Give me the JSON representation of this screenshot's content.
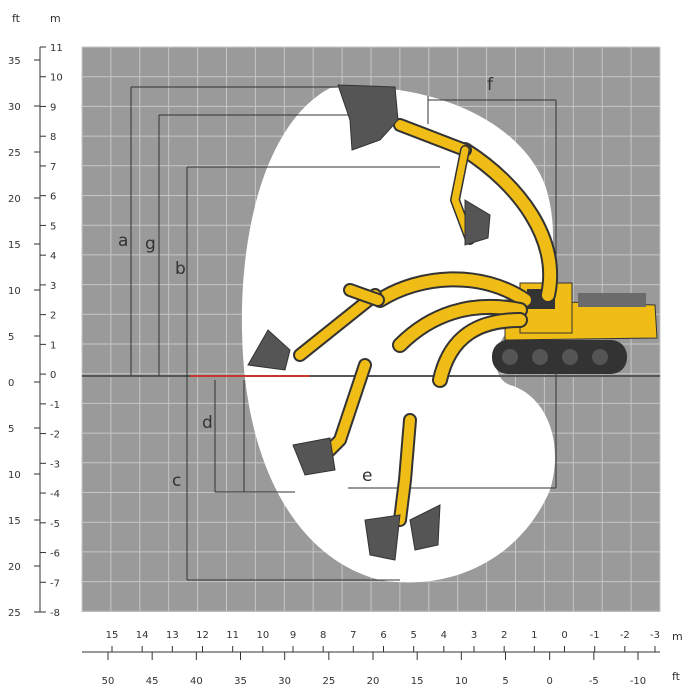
{
  "units": {
    "left_outer": "ft",
    "left_inner": "m",
    "bottom_right": "m",
    "bottom_right_lower": "ft"
  },
  "axis_left_m": [
    "11",
    "10",
    "9",
    "8",
    "7",
    "6",
    "5",
    "4",
    "3",
    "2",
    "1",
    "0",
    "-1",
    "-2",
    "-3",
    "-4",
    "-5",
    "-6",
    "-7",
    "-8"
  ],
  "axis_left_ft": [
    "35",
    "30",
    "25",
    "20",
    "15",
    "10",
    "5",
    "0",
    "5",
    "10",
    "15",
    "20",
    "25"
  ],
  "axis_bottom_m": [
    "15",
    "14",
    "13",
    "12",
    "11",
    "10",
    "9",
    "8",
    "7",
    "6",
    "5",
    "4",
    "3",
    "2",
    "1",
    "0",
    "-1",
    "-2",
    "-3"
  ],
  "axis_bottom_ft": [
    "50",
    "45",
    "40",
    "35",
    "30",
    "25",
    "20",
    "15",
    "10",
    "5",
    "0",
    "-5",
    "-10"
  ],
  "dimension_labels": {
    "a": "a",
    "g": "g",
    "b": "b",
    "d": "d",
    "c": "c",
    "e": "e",
    "f": "f"
  },
  "colors": {
    "grid_bg": "#9a9a9a",
    "grid_line": "#c4c4c4",
    "envelope": "#ffffff",
    "machine": "#f0bd16",
    "ground_line": "#c0392b",
    "dark": "#333333"
  }
}
